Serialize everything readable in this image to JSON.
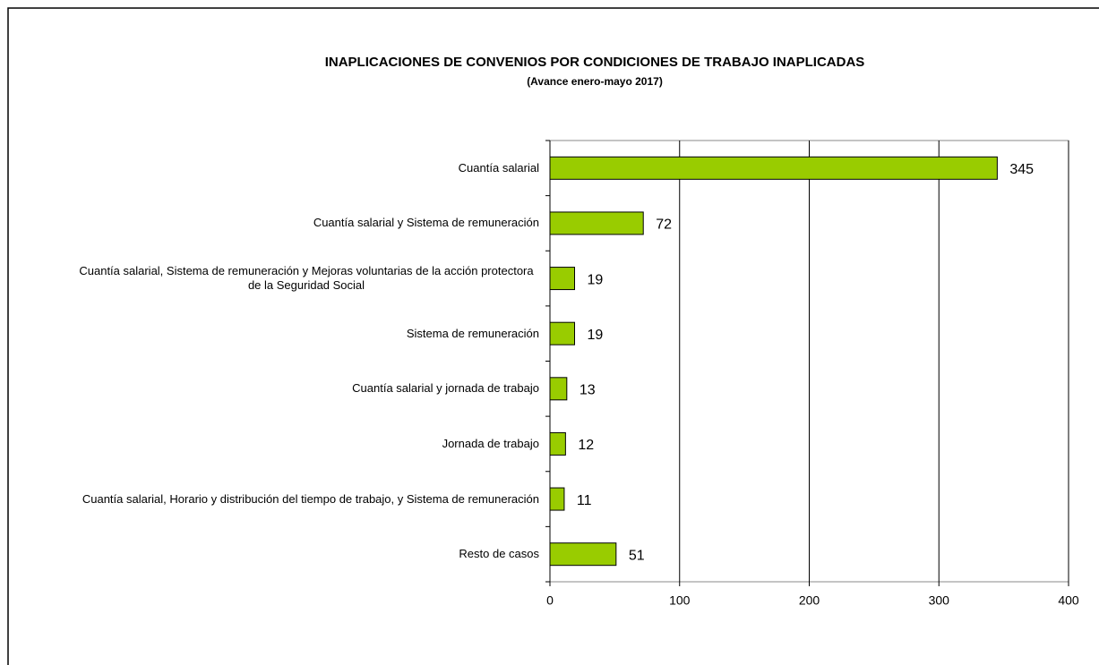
{
  "chart_data": {
    "type": "bar",
    "orientation": "horizontal",
    "title": "INAPLICACIONES DE CONVENIOS POR CONDICIONES DE TRABAJO INAPLICADAS",
    "subtitle": "(Avance enero-mayo 2017)",
    "categories": [
      "Cuantía salarial",
      "Cuantía salarial y Sistema de remuneración",
      "Cuantía salarial, Sistema de remuneración y Mejoras voluntarias de la acción protectora de la Seguridad Social",
      "Sistema de remuneración",
      "Cuantía salarial y jornada de trabajo",
      "Jornada de trabajo",
      "Cuantía salarial, Horario y distribución del tiempo de trabajo, y Sistema de remuneración",
      "Resto de casos"
    ],
    "values": [
      345,
      72,
      19,
      19,
      13,
      12,
      11,
      51
    ],
    "color": "#99cc00",
    "xlim": [
      0,
      400
    ],
    "xticks": [
      0,
      100,
      200,
      300,
      400
    ],
    "grid": true
  }
}
